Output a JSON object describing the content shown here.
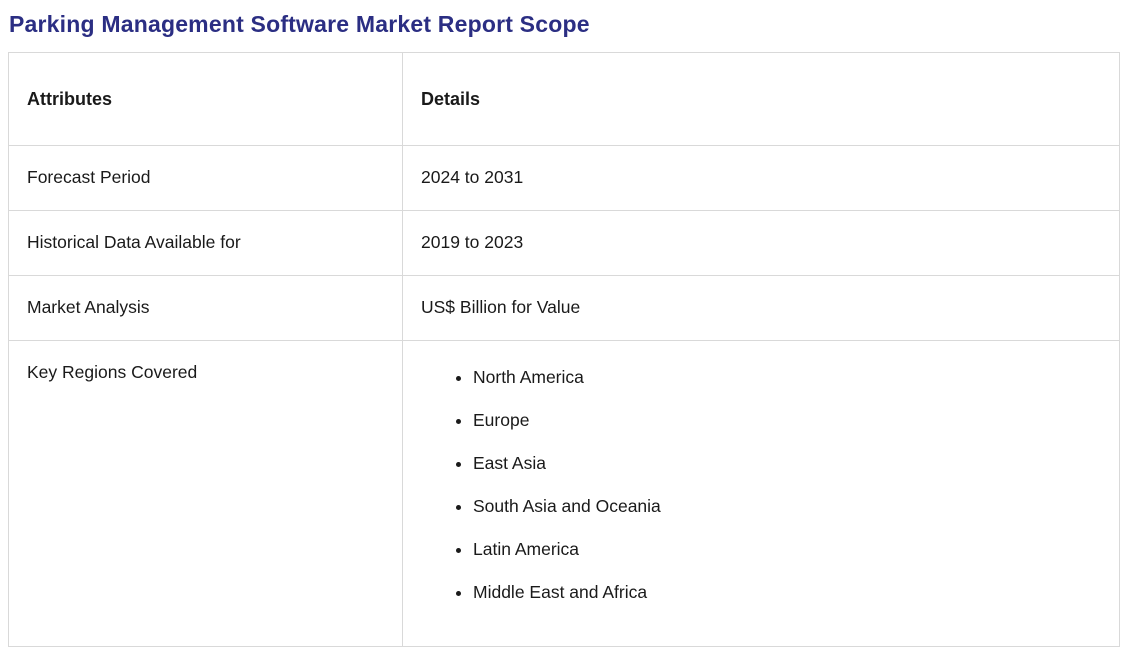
{
  "page": {
    "title": "Parking Management Software Market Report Scope"
  },
  "table": {
    "headers": {
      "attributes": "Attributes",
      "details": "Details"
    },
    "rows": [
      {
        "attribute": "Forecast Period",
        "detail": "2024 to 2031"
      },
      {
        "attribute": "Historical Data Available for",
        "detail": "2019 to 2023"
      },
      {
        "attribute": "Market Analysis",
        "detail": "US$ Billion for Value"
      },
      {
        "attribute": "Key Regions Covered",
        "regions": [
          "North America",
          "Europe",
          "East Asia",
          "South Asia and Oceania",
          "Latin America",
          "Middle East and Africa"
        ]
      }
    ]
  },
  "colors": {
    "title": "#2b2e83",
    "border": "#d9d9d9",
    "text": "#1a1a1a",
    "background": "#ffffff"
  }
}
